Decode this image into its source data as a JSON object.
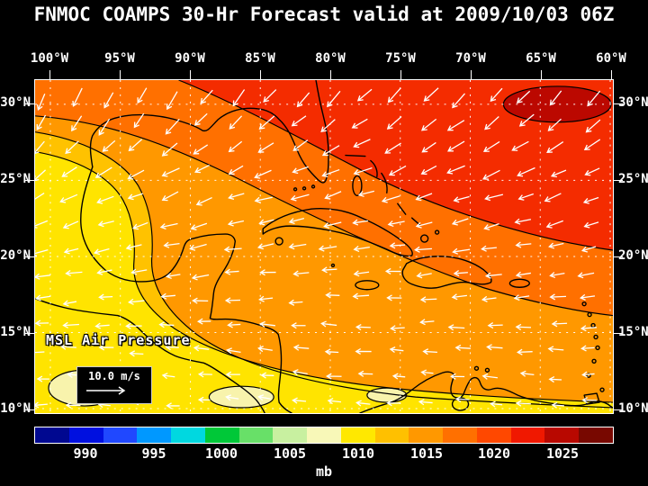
{
  "title": "FNMOC COAMPS 30-Hr Forecast valid at 2009/10/03 06Z",
  "axes": {
    "lon_ticks": [
      "100°W",
      "95°W",
      "90°W",
      "85°W",
      "80°W",
      "75°W",
      "70°W",
      "65°W",
      "60°W"
    ],
    "lat_ticks_left": [
      "30°N",
      "25°N",
      "20°N",
      "15°N",
      "10°N"
    ],
    "lat_ticks_right": [
      "30°N",
      "25°N",
      "20°N",
      "15°N",
      "10°N"
    ]
  },
  "overlays": {
    "field_label": "MSL Air Pressure",
    "wind_scale_label": "10.0 m/s"
  },
  "colorbar": {
    "unit": "mb",
    "tick_labels": [
      "990",
      "995",
      "1000",
      "1005",
      "1010",
      "1015",
      "1020",
      "1025"
    ],
    "cell_colors": [
      "#000890",
      "#0010E0",
      "#2048FF",
      "#0098FF",
      "#00D8E0",
      "#00C838",
      "#68E068",
      "#C8F0A0",
      "#F8F8B8",
      "#FFE800",
      "#FFC000",
      "#FF9800",
      "#FF7000",
      "#FF4800",
      "#F01800",
      "#B80800",
      "#780800"
    ]
  },
  "field_colors": {
    "base": "#FF9800",
    "band_deep_orange": "#FF7000",
    "band_red": "#F42C00",
    "core_dark_red": "#BB0800",
    "band_gold": "#FFC200",
    "band_yellow": "#FFE400",
    "pockets_pale": "#F8F3AC",
    "contour": "#000000",
    "coastline": "#000000",
    "grid": "#FFFFFF",
    "wind_arrows": "#FFFFFF"
  }
}
